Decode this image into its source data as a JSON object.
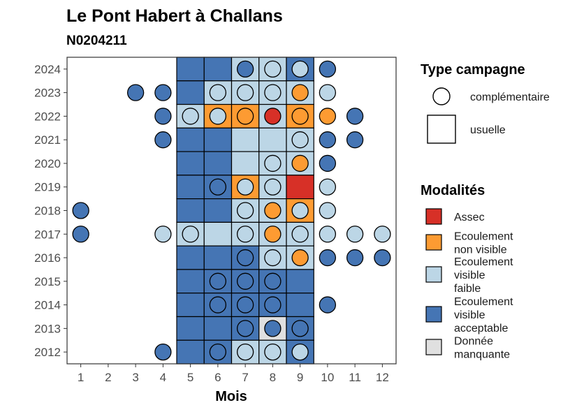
{
  "chart_data": {
    "type": "heatmap",
    "title": "Le Pont Habert à Challans",
    "subtitle": "N0204211",
    "xlabel": "Mois",
    "ylabel": "",
    "x_ticks": [
      "1",
      "2",
      "3",
      "4",
      "5",
      "6",
      "7",
      "8",
      "9",
      "10",
      "11",
      "12"
    ],
    "y_ticks": [
      "2012",
      "2013",
      "2014",
      "2015",
      "2016",
      "2017",
      "2018",
      "2019",
      "2020",
      "2021",
      "2022",
      "2023",
      "2024"
    ],
    "xlim": [
      0.5,
      12.5
    ],
    "ylim": [
      2011.5,
      2024.5
    ],
    "grid": false,
    "legend_type": {
      "title": "Type campagne",
      "entries": [
        {
          "key": "complementaire",
          "label": "complémentaire",
          "shape": "circle"
        },
        {
          "key": "usuelle",
          "label": "usuelle",
          "shape": "square"
        }
      ]
    },
    "legend_mod": {
      "title": "Modalités",
      "entries": [
        {
          "key": "A",
          "lines": [
            "Assec"
          ],
          "color": "#d73027"
        },
        {
          "key": "N",
          "lines": [
            "Ecoulement",
            "non visible"
          ],
          "color": "#fd9b32"
        },
        {
          "key": "F",
          "lines": [
            "Ecoulement",
            "visible",
            "faible"
          ],
          "color": "#bcd6e6"
        },
        {
          "key": "V",
          "lines": [
            "Ecoulement",
            "visible",
            "acceptable"
          ],
          "color": "#4575b4"
        },
        {
          "key": "M",
          "lines": [
            "Donnée",
            "manquante"
          ],
          "color": "#e0e0e0"
        }
      ]
    },
    "usuelle": [
      {
        "year": 2024,
        "values": {
          "5": "V",
          "6": "V",
          "7": "F",
          "8": "F",
          "9": "V"
        }
      },
      {
        "year": 2023,
        "values": {
          "5": "V",
          "6": "F",
          "7": "F",
          "8": "F",
          "9": "F"
        }
      },
      {
        "year": 2022,
        "values": {
          "5": "F",
          "6": "N",
          "7": "N",
          "8": "F",
          "9": "N"
        }
      },
      {
        "year": 2021,
        "values": {
          "5": "V",
          "6": "V",
          "7": "F",
          "8": "F",
          "9": "F"
        }
      },
      {
        "year": 2020,
        "values": {
          "5": "V",
          "6": "V",
          "7": "F",
          "8": "F",
          "9": "F"
        }
      },
      {
        "year": 2019,
        "values": {
          "5": "V",
          "6": "V",
          "7": "N",
          "8": "F",
          "9": "A"
        }
      },
      {
        "year": 2018,
        "values": {
          "5": "V",
          "6": "V",
          "7": "F",
          "8": "F",
          "9": "N"
        }
      },
      {
        "year": 2017,
        "values": {
          "5": "F",
          "6": "F",
          "7": "F",
          "8": "F",
          "9": "F"
        }
      },
      {
        "year": 2016,
        "values": {
          "5": "V",
          "6": "V",
          "7": "V",
          "8": "F",
          "9": "F"
        }
      },
      {
        "year": 2015,
        "values": {
          "5": "V",
          "6": "V",
          "7": "V",
          "8": "V",
          "9": "V"
        }
      },
      {
        "year": 2014,
        "values": {
          "5": "V",
          "6": "V",
          "7": "V",
          "8": "V",
          "9": "V"
        }
      },
      {
        "year": 2013,
        "values": {
          "5": "V",
          "6": "V",
          "7": "V",
          "8": "M",
          "9": "V"
        }
      },
      {
        "year": 2012,
        "values": {
          "5": "V",
          "6": "V",
          "7": "F",
          "8": "F",
          "9": "V"
        }
      }
    ],
    "complementaire": [
      {
        "year": 2024,
        "values": {
          "7": "V",
          "8": "F",
          "9": "F",
          "10": "V"
        }
      },
      {
        "year": 2023,
        "values": {
          "3": "V",
          "4": "V",
          "6": "F",
          "7": "F",
          "8": "F",
          "9": "N",
          "10": "F"
        }
      },
      {
        "year": 2022,
        "values": {
          "4": "V",
          "5": "F",
          "6": "F",
          "7": "N",
          "8": "A",
          "9": "N",
          "10": "N",
          "11": "V"
        }
      },
      {
        "year": 2021,
        "values": {
          "4": "V",
          "9": "F",
          "10": "V",
          "11": "V"
        }
      },
      {
        "year": 2020,
        "values": {
          "8": "F",
          "9": "N",
          "10": "V"
        }
      },
      {
        "year": 2019,
        "values": {
          "6": "V",
          "7": "F",
          "8": "F",
          "10": "F"
        }
      },
      {
        "year": 2018,
        "values": {
          "1": "V",
          "7": "F",
          "8": "N",
          "9": "F",
          "10": "F"
        }
      },
      {
        "year": 2017,
        "values": {
          "1": "V",
          "4": "F",
          "5": "F",
          "7": "F",
          "8": "N",
          "9": "F",
          "10": "F",
          "11": "F",
          "12": "F"
        }
      },
      {
        "year": 2016,
        "values": {
          "7": "V",
          "8": "F",
          "9": "N",
          "10": "V",
          "11": "V",
          "12": "V"
        }
      },
      {
        "year": 2015,
        "values": {
          "6": "V",
          "7": "V",
          "8": "V"
        }
      },
      {
        "year": 2014,
        "values": {
          "6": "V",
          "7": "V",
          "8": "V",
          "10": "V"
        }
      },
      {
        "year": 2013,
        "values": {
          "7": "V",
          "8": "V",
          "9": "V"
        }
      },
      {
        "year": 2012,
        "values": {
          "4": "V",
          "6": "V",
          "7": "F",
          "8": "F",
          "9": "F"
        }
      }
    ]
  }
}
